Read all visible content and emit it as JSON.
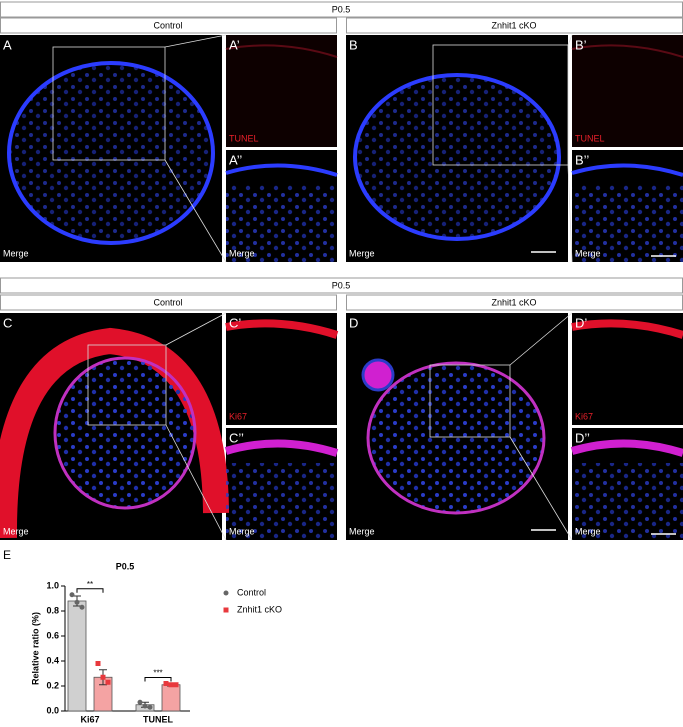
{
  "rows": [
    {
      "header": "P0.5",
      "groups": [
        {
          "title": "Control",
          "main": {
            "letter": "A",
            "label": "Merge"
          },
          "inset_top": {
            "letter": "A’",
            "label": "TUNEL"
          },
          "inset_bottom": {
            "letter": "A’’",
            "label": "Merge"
          }
        },
        {
          "title": "Znhit1 cKO",
          "main": {
            "letter": "B",
            "label": "Merge"
          },
          "inset_top": {
            "letter": "B’",
            "label": "TUNEL"
          },
          "inset_bottom": {
            "letter": "B’’",
            "label": "Merge"
          }
        }
      ]
    },
    {
      "header": "P0.5",
      "groups": [
        {
          "title": "Control",
          "main": {
            "letter": "C",
            "label": "Merge"
          },
          "inset_top": {
            "letter": "C’",
            "label": "Ki67"
          },
          "inset_bottom": {
            "letter": "C’’",
            "label": "Merge"
          }
        },
        {
          "title": "Znhit1 cKO",
          "main": {
            "letter": "D",
            "label": "Merge"
          },
          "inset_top": {
            "letter": "D’",
            "label": "Ki67"
          },
          "inset_bottom": {
            "letter": "D’’",
            "label": "Merge"
          }
        }
      ]
    }
  ],
  "panel_e_letter": "E",
  "chart_data": {
    "type": "bar",
    "title": "P0.5",
    "y_label": "Relative ratio (%)",
    "categories": [
      "Ki67",
      "TUNEL"
    ],
    "series": [
      {
        "name": "Control",
        "color": "#d0d0d0",
        "point_color": "#666666",
        "values": [
          0.88,
          0.05
        ],
        "errors": [
          0.04,
          0.02
        ],
        "points": [
          [
            0.93,
            0.87,
            0.83
          ],
          [
            0.07,
            0.04,
            0.03
          ]
        ]
      },
      {
        "name": "Znhit1 cKO",
        "color": "#f4a3a3",
        "point_color": "#e8383d",
        "values": [
          0.27,
          0.21
        ],
        "errors": [
          0.06,
          0.01
        ],
        "points": [
          [
            0.38,
            0.27,
            0.23
          ],
          [
            0.22,
            0.21,
            0.21
          ]
        ]
      }
    ],
    "annotations": [
      "**",
      "***"
    ],
    "ylim": [
      0,
      1.0
    ],
    "yticks": [
      {
        "value": 0,
        "label": "0.0"
      },
      0.2,
      0.4,
      0.6,
      0.8,
      {
        "value": 1.0,
        "label": "1.0"
      }
    ]
  }
}
